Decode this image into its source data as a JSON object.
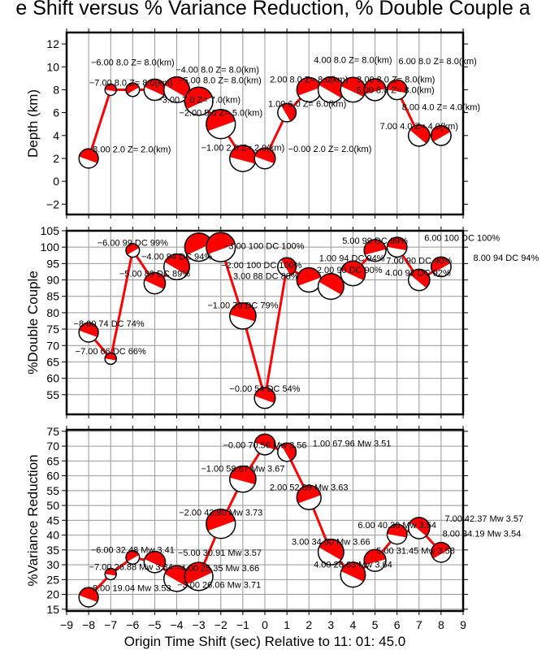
{
  "title": "e Shift versus % Variance Reduction, % Double Couple a",
  "colors": {
    "accent": "#ff0000",
    "grid": "#999999",
    "frame": "#000000"
  },
  "chart_data": {
    "type": "scatter",
    "xlabel": "Origin Time Shift (sec) Relative to 11: 01: 45.0",
    "xlim": [
      -9,
      9
    ],
    "xticks": [
      "-9",
      "-8",
      "-7",
      "-6",
      "-5",
      "-4",
      "-3",
      "-2",
      "-1",
      "0",
      "1",
      "2",
      "3",
      "4",
      "5",
      "6",
      "7",
      "8",
      "9"
    ],
    "x": [
      -8,
      -7,
      -6,
      -5,
      -4,
      -3,
      -2,
      -1,
      0,
      1,
      2,
      3,
      4,
      5,
      6,
      7,
      8
    ],
    "mw": [
      3.53,
      3.34,
      3.41,
      3.57,
      3.66,
      3.71,
      3.73,
      3.67,
      3.56,
      3.51,
      3.63,
      3.66,
      3.64,
      3.58,
      3.54,
      3.57,
      3.54
    ],
    "panels": [
      {
        "name": "depth",
        "ylabel": "Depth (km)",
        "ylim": [
          -2.9,
          13
        ],
        "grid": "vertical",
        "yticks": [
          -2,
          0,
          2,
          4,
          6,
          8,
          10,
          12
        ],
        "values": [
          2,
          8,
          8,
          8,
          8,
          7,
          5,
          2,
          2,
          6,
          8,
          8,
          8,
          8,
          8,
          4,
          4
        ],
        "labels": [
          "−8.00 2.0 Z= 2.0(km)",
          "−7.00 8.0 Z= 8.0(km)",
          "−6.00 8.0 Z= 8.0(km)",
          "−5.00 8.0 Z= 8.0(km)",
          "−4.00 8.0 Z= 8.0(km)",
          "−3.00 7.0 Z= 7.0(km)",
          "−2.00 5.0 Z= 5.0(km)",
          "−1.00 2.0 Z= 2.0(km)",
          "−0.00 2.0 Z= 2.0(km)",
          "1.00 6.0 Z= 6.0(km)",
          "2.00 8.0 Z= 8.0(km)",
          "3.00 8.0 Z= 8.0(km)",
          "4.00 8.0 Z= 8.0(km)",
          "5.00 8.0 Z= 8.0(km)",
          "6.00 8.0 Z= 8.0(km)",
          "7.00 4.0 Z= 4.0(km)",
          "8.00 4.0 Z= 4.0(km)"
        ]
      },
      {
        "name": "double-couple",
        "ylabel": "%Double Couple",
        "ylim": [
          49,
          105
        ],
        "grid": "both",
        "yticks": [
          55,
          60,
          65,
          70,
          75,
          80,
          85,
          90,
          95,
          100,
          105
        ],
        "values": [
          74,
          66,
          99,
          89,
          94,
          100,
          100,
          79,
          54,
          94,
          90,
          88,
          92,
          99,
          100,
          90,
          94
        ],
        "labels": [
          "−8.00 74 DC 74%",
          "−7.00 66 DC 66%",
          "−6.00 99 DC 99%",
          "−5.00 89 DC 89%",
          "−4.00 94 DC 94%",
          "−3.00 100 DC 100%",
          "−2.00 100 DC 100%",
          "−1.00 79 DC 79%",
          "−0.00 54 DC 54%",
          "1.00 94 DC 94%",
          "2.00 90 DC 90%",
          "3.00 88 DC 88%",
          "4.00 92 DC 92%",
          "5.00 99 DC 99%",
          "6.00 100 DC 100%",
          "7.00 90 DC 90%",
          "8.00 94 DC 94%"
        ]
      },
      {
        "name": "variance-reduction",
        "ylabel": "%Variance Reduction",
        "ylim": [
          14.4,
          75.5
        ],
        "grid": "both",
        "yticks": [
          15,
          20,
          25,
          30,
          35,
          40,
          45,
          50,
          55,
          60,
          65,
          70,
          75
        ],
        "values": [
          19.04,
          26.88,
          32.48,
          30.91,
          25.35,
          26.06,
          43.8,
          58.87,
          70.56,
          67.96,
          52.69,
          34.3,
          26.63,
          31.45,
          40.3,
          42.37,
          34.19
        ],
        "labels": [
          "−8.00 19.04 Mw 3.53",
          "−7.00 26.88 Mw 3.34",
          "−6.00 32.48 Mw 3.41",
          "−5.00 30.91 Mw 3.57",
          "−4.00 25.35 Mw 3.66",
          "−3.00 26.06 Mw 3.71",
          "−2.00 43.80 Mw 3.73",
          "−1.00 58.87 Mw 3.67",
          "−0.00 70.56 Mw 3.56",
          "1.00 67.96 Mw 3.51",
          "2.00 52.69 Mw 3.63",
          "3.00 34.30 Mw 3.66",
          "4.00 26.63 Mw 3.64",
          "5.00 31.45 Mw 3.58",
          "6.00 40.30 Mw 3.54",
          "7.00 42.37 Mw 3.57",
          "8.00 34.19 Mw 3.54"
        ]
      }
    ]
  }
}
